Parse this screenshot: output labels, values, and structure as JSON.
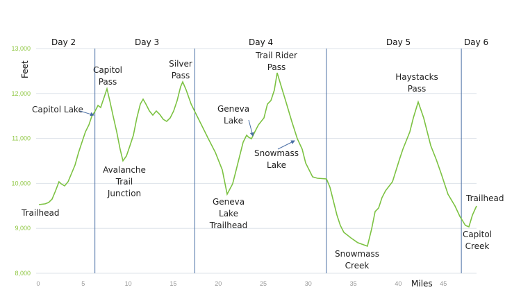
{
  "chart_data": {
    "type": "line",
    "title": "",
    "xlabel": "Miles",
    "ylabel": "Feet",
    "xlim": [
      0,
      48.8
    ],
    "ylim": [
      8000,
      13000
    ],
    "xticks": [
      0,
      5,
      10,
      15,
      20,
      25,
      30,
      35,
      40,
      45
    ],
    "yticks": [
      8000,
      9000,
      10000,
      11000,
      12000,
      13000
    ],
    "ytick_labels": [
      "8,000",
      "9,000",
      "10,000",
      "11,000",
      "12,000",
      "13,000"
    ],
    "grid": "horizontal",
    "line_color": "#7cc242",
    "divider_color": "#4a6fa5",
    "day_dividers": [
      6.3,
      17.4,
      32.0,
      47.0
    ],
    "day_labels": [
      "Day 2",
      "Day 3",
      "Day 4",
      "Day 5",
      "Day 6"
    ],
    "series": [
      {
        "name": "Elevation",
        "x": [
          0.08,
          0.77,
          1.16,
          1.54,
          1.93,
          2.31,
          2.55,
          2.93,
          3.32,
          3.7,
          4.09,
          4.48,
          4.86,
          5.25,
          5.63,
          5.94,
          6.33,
          6.64,
          6.94,
          7.33,
          7.64,
          7.95,
          8.33,
          8.72,
          9.1,
          9.41,
          9.8,
          10.19,
          10.57,
          10.96,
          11.34,
          11.65,
          11.96,
          12.35,
          12.73,
          13.12,
          13.5,
          13.89,
          14.27,
          14.66,
          15.05,
          15.43,
          15.82,
          16.05,
          16.44,
          16.98,
          17.44,
          18.13,
          18.9,
          19.68,
          20.45,
          20.99,
          21.6,
          21.99,
          22.38,
          22.76,
          23.15,
          23.38,
          23.69,
          24.07,
          24.46,
          25.08,
          25.46,
          25.85,
          26.23,
          26.54,
          27.01,
          27.55,
          28.16,
          28.78,
          29.32,
          29.71,
          30.48,
          31.02,
          32.02,
          32.41,
          32.79,
          33.18,
          33.56,
          33.95,
          34.72,
          35.49,
          36.57,
          37.04,
          37.42,
          37.81,
          38.19,
          38.58,
          39.35,
          40.12,
          40.51,
          41.28,
          41.67,
          42.21,
          42.82,
          43.6,
          44.21,
          44.75,
          45.52,
          46.3,
          46.84,
          47.45,
          47.84,
          48.23,
          48.69
        ],
        "y": [
          9528,
          9544,
          9575,
          9652,
          9837,
          10037,
          9991,
          9945,
          10037,
          10222,
          10408,
          10686,
          10917,
          11148,
          11303,
          11488,
          11611,
          11735,
          11688,
          11920,
          12105,
          11843,
          11488,
          11148,
          10763,
          10501,
          10609,
          10840,
          11071,
          11457,
          11766,
          11874,
          11766,
          11611,
          11519,
          11611,
          11534,
          11426,
          11380,
          11457,
          11611,
          11843,
          12151,
          12259,
          12074,
          11766,
          11580,
          11303,
          10994,
          10686,
          10300,
          9760,
          9991,
          10300,
          10609,
          10917,
          11071,
          11025,
          10994,
          11148,
          11303,
          11457,
          11766,
          11843,
          12074,
          12460,
          12151,
          11797,
          11380,
          10994,
          10763,
          10454,
          10145,
          10114,
          10099,
          9914,
          9605,
          9297,
          9065,
          8911,
          8788,
          8680,
          8603,
          8988,
          9374,
          9451,
          9683,
          9837,
          10037,
          10531,
          10763,
          11148,
          11457,
          11812,
          11457,
          10840,
          10531,
          10222,
          9760,
          9497,
          9266,
          9065,
          9034,
          9297,
          9497
        ]
      }
    ],
    "annotations": {
      "trailhead_start": "Trailhead",
      "capitol_lake": "Capitol Lake",
      "capitol_pass": [
        "Capitol",
        "Pass"
      ],
      "avalanche": [
        "Avalanche",
        "Trail",
        "Junction"
      ],
      "silver_pass": [
        "Silver",
        "Pass"
      ],
      "geneva_lake": [
        "Geneva",
        "Lake"
      ],
      "geneva_trailhead": [
        "Geneva",
        "Lake",
        "Trailhead"
      ],
      "trail_rider": [
        "Trail Rider",
        "Pass"
      ],
      "snowmass_lake": [
        "Snowmass",
        "Lake"
      ],
      "snowmass_creek": [
        "Snowmass",
        "Creek"
      ],
      "haystacks": [
        "Haystacks",
        "Pass"
      ],
      "capitol_creek": [
        "Capitol",
        "Creek"
      ],
      "trailhead_end": "Trailhead"
    }
  }
}
